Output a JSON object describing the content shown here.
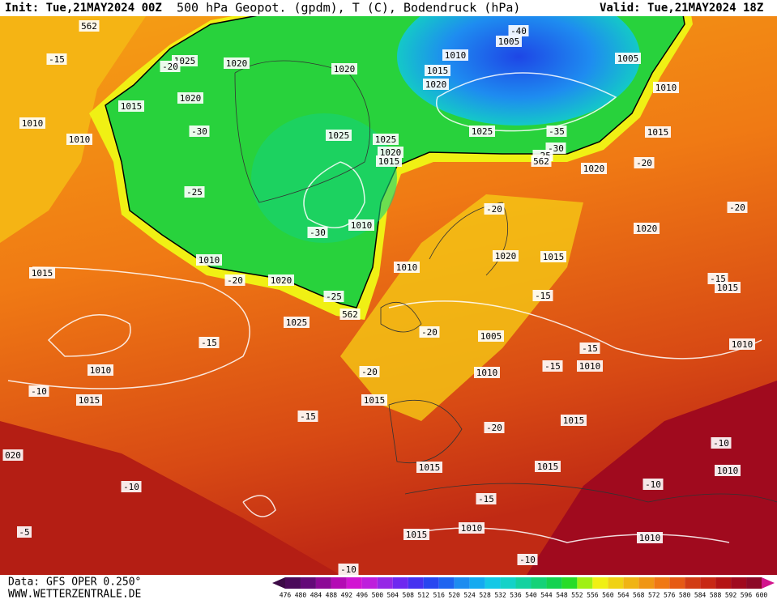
{
  "header": {
    "init": "Init: Tue,21MAY2024 00Z",
    "title": "500 hPa Geopot. (gpdm), T (C), Bodendruck (hPa)",
    "valid": "Valid: Tue,21MAY2024 18Z"
  },
  "footer": {
    "data": "Data: GFS OPER 0.250°",
    "website": "WWW.WETTERZENTRALE.DE"
  },
  "colorbar": {
    "levels": [
      476,
      480,
      484,
      488,
      492,
      496,
      500,
      504,
      508,
      512,
      516,
      520,
      524,
      528,
      532,
      536,
      540,
      544,
      548,
      552,
      556,
      560,
      564,
      568,
      572,
      576,
      580,
      584,
      588,
      592,
      596,
      600
    ],
    "colors": [
      "#4a0a5a",
      "#640a78",
      "#8c0a96",
      "#b40ab4",
      "#d214d2",
      "#be1edc",
      "#9628e6",
      "#6e28f0",
      "#4632f0",
      "#2846f0",
      "#1e64f0",
      "#1e8cf0",
      "#14aaf0",
      "#14c8e6",
      "#14d2c8",
      "#14d2a0",
      "#14d278",
      "#14d250",
      "#28dc28",
      "#a0f014",
      "#f0f014",
      "#f0d214",
      "#f0b414",
      "#f09614",
      "#f07814",
      "#e65a14",
      "#d23c14",
      "#c82814",
      "#b41414",
      "#a00a1e",
      "#8c0a28"
    ]
  },
  "map_labels": [
    "562",
    "-15",
    "1025",
    "1020",
    "-20",
    "1020",
    "1015",
    "1020",
    "1010",
    "1010",
    "-30",
    "1025",
    "1025",
    "1020",
    "1015",
    "-25",
    "-30",
    "1010",
    "1010",
    "1020",
    "-20",
    "-25",
    "562",
    "1015",
    "1025",
    "-15",
    "1010",
    "-10",
    "1015",
    "-20",
    "1015",
    "-15",
    "1010",
    "-40",
    "1005",
    "1015",
    "1020",
    "1005",
    "1010",
    "1025",
    "-35",
    "-30",
    "-25",
    "562",
    "1015",
    "1020",
    "-20",
    "-20",
    "-20",
    "1020",
    "1020",
    "1015",
    "1010",
    "-15",
    "1015",
    "-15",
    "-20",
    "1005",
    "-15",
    "1010",
    "-15",
    "1010",
    "1010",
    "1015",
    "-20",
    "020",
    "-10",
    "1015",
    "1015",
    "1010",
    "-10",
    "-10",
    "-15",
    "1015",
    "1010",
    "-5",
    "1010",
    "-10",
    "-10"
  ]
}
